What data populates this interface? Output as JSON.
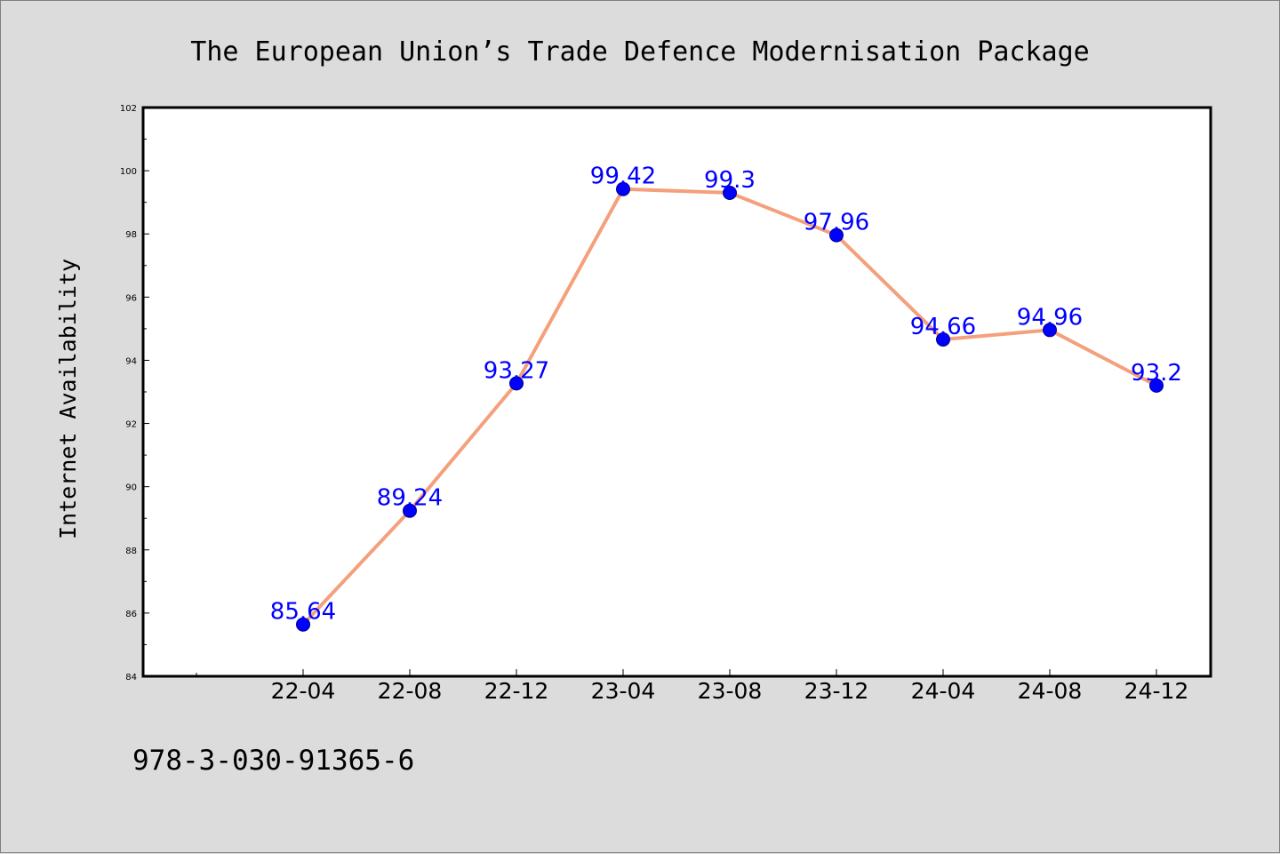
{
  "page": {
    "title": "The European Union’s Trade Defence Modernisation Package",
    "footer": "978-3-030-91365-6"
  },
  "colors": {
    "background": "#dcdcdc",
    "plot_area": "#ffffff",
    "line": "#f4a07c",
    "marker": "#0000ff",
    "data_label": "#0000ff"
  },
  "chart_data": {
    "type": "line",
    "title": "The European Union’s Trade Defence Modernisation Package",
    "xlabel": "",
    "ylabel": "Internet Availability",
    "categories": [
      "22-04",
      "22-08",
      "22-12",
      "23-04",
      "23-08",
      "23-12",
      "24-04",
      "24-08",
      "24-12"
    ],
    "series": [
      {
        "values": [
          85.64,
          89.24,
          93.27,
          99.42,
          99.3,
          97.96,
          94.66,
          94.96,
          93.2
        ],
        "labels": [
          "85.64",
          "89.24",
          "93.27",
          "99.42",
          "99.3",
          "97.96",
          "94.66",
          "94.96",
          "93.2"
        ]
      }
    ],
    "ylim": [
      84,
      102
    ],
    "yticks": [
      "84",
      "86",
      "88",
      "90",
      "92",
      "94",
      "96",
      "98",
      "100",
      "102"
    ],
    "grid": false,
    "legend": "none",
    "markers": "circle"
  }
}
